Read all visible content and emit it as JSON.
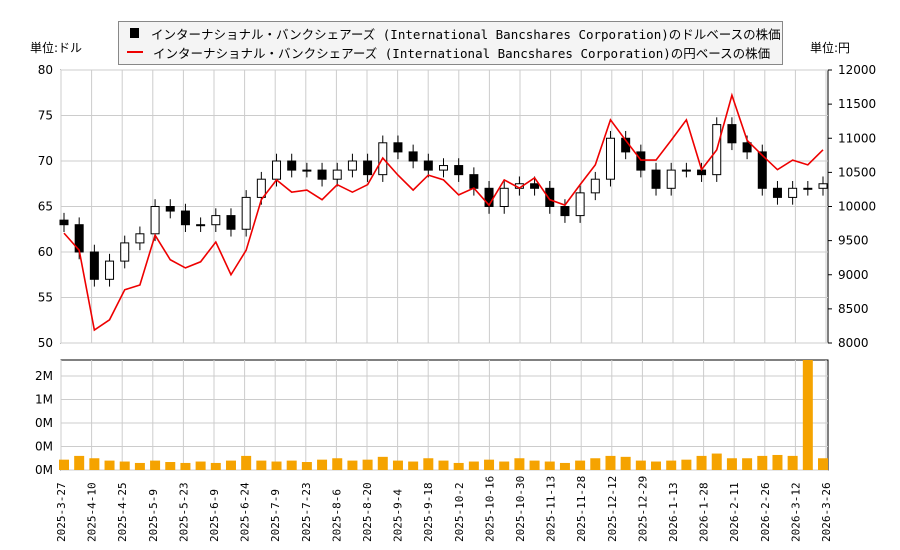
{
  "chart_data": {
    "type": "candlestick+line+bar",
    "legend": [
      "インターナショナル・バンクシェアーズ (International Bancshares Corporation)のドルベースの株価",
      "インターナショナル・バンクシェアーズ (International Bancshares Corporation)の円ベースの株価"
    ],
    "left_unit": "単位:ドル",
    "right_unit": "単位:円",
    "left_ylim": [
      50,
      80
    ],
    "left_ticks": [
      "50",
      "55",
      "60",
      "65",
      "70",
      "75",
      "80"
    ],
    "right_ylim": [
      8000,
      12000
    ],
    "right_ticks": [
      "8000",
      "8500",
      "9000",
      "9500",
      "10000",
      "10500",
      "11000",
      "11500",
      "12000"
    ],
    "volume_ticks": [
      "0M",
      "0M",
      "0M",
      "1M",
      "2M"
    ],
    "x_ticks": [
      "2025-3-27",
      "2025-4-10",
      "2025-4-25",
      "2025-5-9",
      "2025-5-23",
      "2025-6-9",
      "2025-6-24",
      "2025-7-9",
      "2025-7-23",
      "2025-8-6",
      "2025-8-20",
      "2025-9-4",
      "2025-9-18",
      "2025-10-2",
      "2025-10-16",
      "2025-10-30",
      "2025-11-13",
      "2025-11-28",
      "2025-12-12",
      "2025-12-29",
      "2026-1-13",
      "2026-1-28",
      "2026-2-11",
      "2026-2-26",
      "2026-3-12",
      "2026-3-26"
    ],
    "usd_close": [
      63,
      60,
      57,
      59,
      61,
      62,
      65,
      64.5,
      63,
      63,
      64,
      62.5,
      66,
      68,
      70,
      69,
      69,
      68,
      69,
      70,
      68.5,
      72,
      71,
      70,
      69,
      69.5,
      68.5,
      67,
      65,
      67,
      67.5,
      67,
      65,
      64,
      66.5,
      68,
      72.5,
      71,
      69,
      67,
      69,
      69,
      68.5,
      74,
      72,
      71,
      67,
      66,
      67,
      67,
      67.5
    ],
    "yen_close": [
      9610,
      9360,
      8190,
      8340,
      8780,
      8850,
      9580,
      9220,
      9100,
      9190,
      9480,
      9000,
      9360,
      10100,
      10390,
      10210,
      10240,
      10100,
      10320,
      10210,
      10320,
      10710,
      10460,
      10240,
      10460,
      10390,
      10170,
      10270,
      10020,
      10390,
      10270,
      10420,
      10100,
      10020,
      10320,
      10610,
      11270,
      10970,
      10680,
      10680,
      10970,
      11270,
      10540,
      10830,
      11630,
      10970,
      10750,
      10540,
      10680,
      10610,
      10830
    ],
    "volume_m": [
      0.22,
      0.3,
      0.25,
      0.2,
      0.18,
      0.15,
      0.2,
      0.17,
      0.15,
      0.18,
      0.15,
      0.2,
      0.3,
      0.2,
      0.18,
      0.2,
      0.17,
      0.22,
      0.25,
      0.2,
      0.22,
      0.28,
      0.2,
      0.18,
      0.25,
      0.2,
      0.15,
      0.18,
      0.22,
      0.18,
      0.25,
      0.2,
      0.18,
      0.15,
      0.2,
      0.25,
      0.3,
      0.28,
      0.2,
      0.18,
      0.2,
      0.22,
      0.3,
      0.35,
      0.25,
      0.25,
      0.3,
      0.32,
      0.3,
      2.7,
      0.25
    ]
  }
}
